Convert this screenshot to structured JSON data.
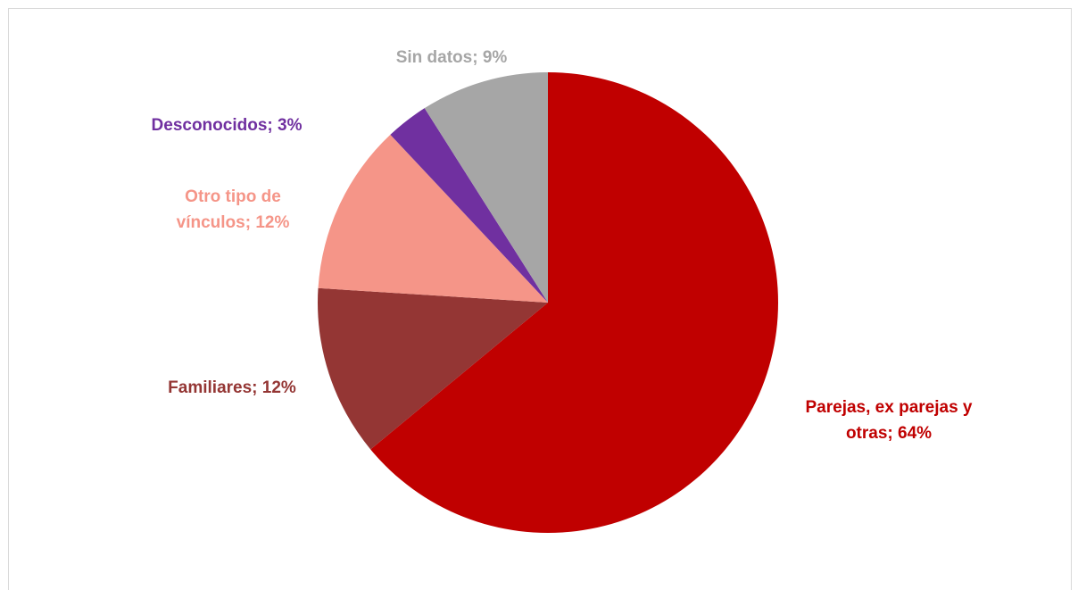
{
  "chart_data": {
    "type": "pie",
    "title": "",
    "slices": [
      {
        "label_lines": [
          "Parejas, ex parejas y",
          "otras; 64%"
        ],
        "category": "Parejas, ex parejas y otras",
        "value": 64,
        "color": "#c00000",
        "label_color": "#c00000"
      },
      {
        "label_lines": [
          "Familiares; 12%"
        ],
        "category": "Familiares",
        "value": 12,
        "color": "#943634",
        "label_color": "#943634"
      },
      {
        "label_lines": [
          "Otro tipo de",
          "vínculos; 12%"
        ],
        "category": "Otro tipo de vínculos",
        "value": 12,
        "color": "#f59588",
        "label_color": "#f59588"
      },
      {
        "label_lines": [
          "Desconocidos; 3%"
        ],
        "category": "Desconocidos",
        "value": 3,
        "color": "#7030a0",
        "label_color": "#7030a0"
      },
      {
        "label_lines": [
          "Sin datos; 9%"
        ],
        "category": "Sin datos",
        "value": 9,
        "color": "#a6a6a6",
        "label_color": "#a6a6a6"
      }
    ],
    "legend": "none",
    "start_angle": "12 o'clock",
    "direction": "clockwise"
  }
}
